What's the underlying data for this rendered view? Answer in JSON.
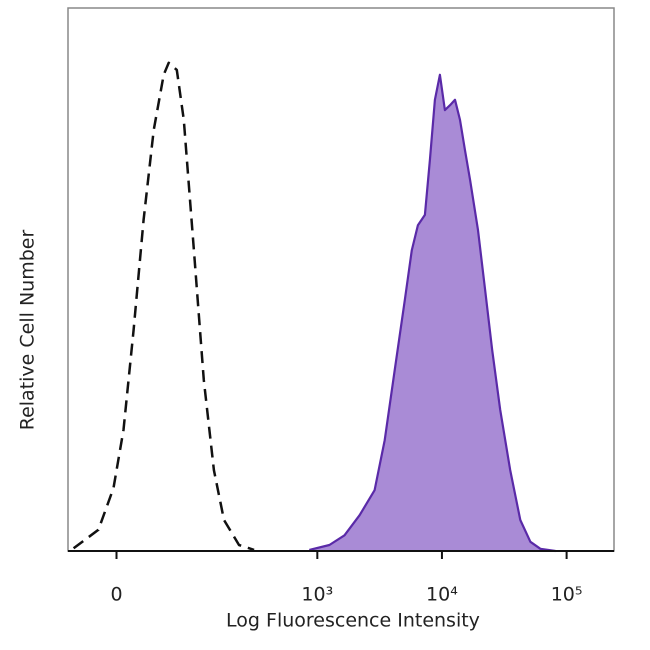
{
  "chart_data": {
    "type": "histogram-overlay",
    "xlabel": "Log Fluorescence Intensity",
    "ylabel": "Relative Cell Number",
    "xscale": "asinh",
    "xlim": [
      -50,
      240000
    ],
    "ylim": [
      0,
      100
    ],
    "xticks": [
      0,
      {
        "value": 1000,
        "label": "10³"
      },
      {
        "value": 10000,
        "label": "10⁴"
      },
      {
        "value": 100000,
        "label": "10⁵"
      }
    ],
    "series": [
      {
        "color": "#111111",
        "fill": "none",
        "dash": true,
        "x": [
          -43,
          -16.7,
          -2.7,
          6.4,
          15.7,
          25.6,
          36.4,
          48.3,
          54.9,
          66.6,
          77.9,
          96.4,
          118,
          144,
          175,
          233,
          309
        ],
        "values": [
          0.5,
          3.9,
          11.6,
          22.3,
          40.7,
          61,
          77.5,
          87.7,
          89.9,
          88.6,
          79.4,
          55.4,
          31.5,
          14.9,
          5.7,
          1.1,
          0.2
        ]
      },
      {
        "color": "#5a2aa8",
        "fill": "#a98bd6",
        "dash": false,
        "x": [
          862,
          1251,
          1653,
          2184,
          2883,
          3472,
          4178,
          5032,
          5733,
          6410,
          7298,
          8002,
          8781,
          9633,
          10570,
          11599,
          12725,
          13965,
          15318,
          16807,
          19478,
          22197,
          25284,
          29327,
          35300,
          42500,
          51200,
          61600,
          81400
        ],
        "values": [
          0.2,
          1.1,
          2.9,
          6.6,
          11.2,
          20.4,
          33.3,
          46.2,
          55.4,
          60,
          61.9,
          72,
          83.1,
          87.7,
          81.2,
          82.1,
          83.1,
          79.4,
          73.8,
          68.3,
          59.1,
          48.1,
          37,
          26,
          14.9,
          5.7,
          1.7,
          0.4,
          0
        ]
      }
    ]
  }
}
